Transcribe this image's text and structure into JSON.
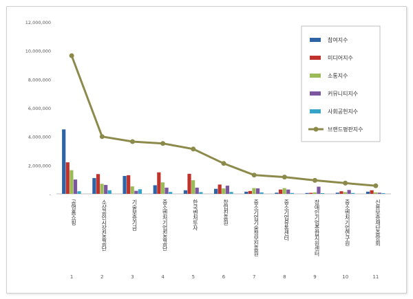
{
  "chart_data": {
    "type": "bar",
    "categories": [
      "1",
      "2",
      "3",
      "4",
      "5",
      "6",
      "7",
      "8",
      "9",
      "10",
      "11"
    ],
    "category_names": [
      "공영홈쇼핑",
      "소상공인시장진흥공단",
      "기술보증기금",
      "중소벤처기업진흥공단",
      "한국벤처투자",
      "창업진흥원",
      "중소기업기술정보진흥원",
      "중소기업유통센터",
      "장애인기업종합지원센터",
      "중소벤처기업연구원",
      "신용보증재단중앙회"
    ],
    "y_ticks": [
      "-",
      "2,000,000",
      "4,000,000",
      "6,000,000",
      "8,000,000",
      "10,000,000",
      "12,000,000"
    ],
    "ylim": [
      0,
      12000000
    ],
    "legend_position": "right",
    "grid": false,
    "series": [
      {
        "name": "참여지수",
        "color": "#2e64a6",
        "kind": "bar",
        "values": [
          4500000,
          1100000,
          1250000,
          600000,
          250000,
          350000,
          150000,
          80000,
          60000,
          80000,
          150000
        ]
      },
      {
        "name": "미디어지수",
        "color": "#c0332c",
        "kind": "bar",
        "values": [
          2200000,
          1380000,
          1300000,
          1500000,
          1400000,
          650000,
          200000,
          300000,
          70000,
          180000,
          250000
        ]
      },
      {
        "name": "소통지수",
        "color": "#9bbb59",
        "kind": "bar",
        "values": [
          1650000,
          700000,
          520000,
          800000,
          950000,
          380000,
          400000,
          400000,
          100000,
          120000,
          100000
        ]
      },
      {
        "name": "커뮤니티지수",
        "color": "#7d56a0",
        "kind": "bar",
        "values": [
          1000000,
          620000,
          210000,
          430000,
          430000,
          570000,
          380000,
          300000,
          500000,
          270000,
          80000
        ]
      },
      {
        "name": "사회공헌지수",
        "color": "#36a3c8",
        "kind": "bar",
        "values": [
          180000,
          250000,
          320000,
          130000,
          120000,
          130000,
          100000,
          60000,
          50000,
          60000,
          50000
        ]
      },
      {
        "name": "브랜드평판지수",
        "color": "#8c8a4a",
        "kind": "line",
        "values": [
          9650000,
          4000000,
          3650000,
          3520000,
          3130000,
          2120000,
          1310000,
          1170000,
          940000,
          750000,
          560000
        ]
      }
    ]
  }
}
